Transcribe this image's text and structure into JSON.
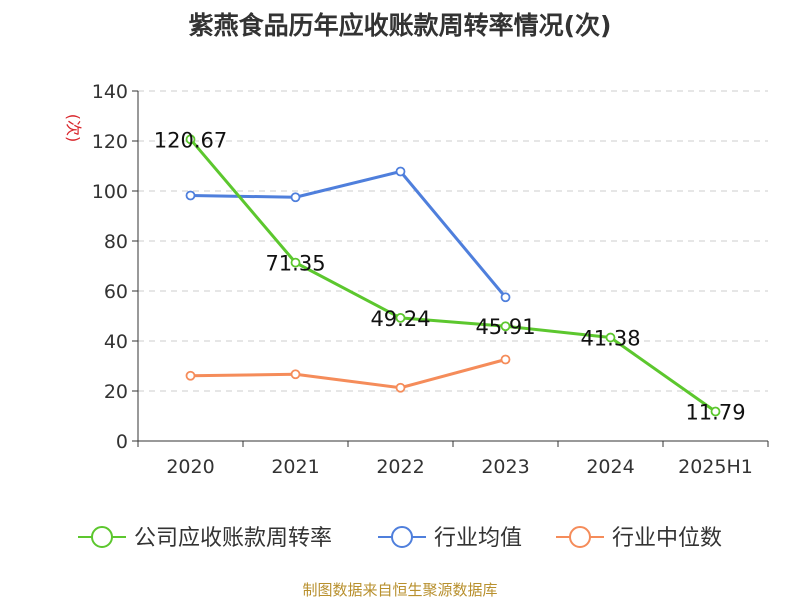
{
  "source_note": "制图数据来自恒生聚源数据库",
  "chart_data": {
    "type": "line",
    "title": "紫燕食品历年应收账款周转率情况(次)",
    "ylabel": "(次)",
    "xlabel": "",
    "categories": [
      "2020",
      "2021",
      "2022",
      "2023",
      "2024",
      "2025H1"
    ],
    "ylim": [
      0,
      140
    ],
    "yticks": [
      0,
      20,
      40,
      60,
      80,
      100,
      120,
      140
    ],
    "grid": true,
    "legend_position": "bottom",
    "series": [
      {
        "name": "公司应收账款周转率",
        "color": "#5cc72e",
        "values": [
          120.67,
          71.35,
          49.24,
          45.91,
          41.38,
          11.79
        ],
        "labels": [
          "120.67",
          "71.35",
          "49.24",
          "45.91",
          "41.38",
          "11.79"
        ]
      },
      {
        "name": "行业均值",
        "color": "#4f7fdc",
        "values": [
          98.2,
          97.5,
          107.8,
          57.5,
          null,
          null
        ]
      },
      {
        "name": "行业中位数",
        "color": "#f58c5a",
        "values": [
          26.1,
          26.7,
          21.3,
          32.6,
          null,
          null
        ]
      }
    ]
  }
}
